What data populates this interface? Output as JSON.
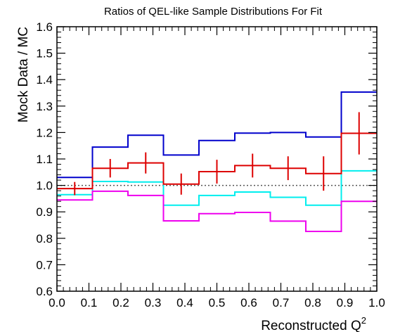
{
  "chart_data": {
    "type": "line",
    "title": "Ratios of QEL-like Sample Distributions For Fit",
    "xlabel": "Reconstructed Q",
    "xlabel_sup": "2",
    "ylabel": "Mock Data / MC",
    "xlim": [
      0.0,
      1.0
    ],
    "ylim": [
      0.6,
      1.6
    ],
    "x_ticks": [
      0.0,
      0.1,
      0.2,
      0.3,
      0.4,
      0.5,
      0.6,
      0.7,
      0.8,
      0.9,
      1.0
    ],
    "x_tick_labels": [
      "0.0",
      "0.1",
      "0.2",
      "0.3",
      "0.4",
      "0.5",
      "0.6",
      "0.7",
      "0.8",
      "0.9",
      "1.0"
    ],
    "y_ticks": [
      0.6,
      0.7,
      0.8,
      0.9,
      1.0,
      1.1,
      1.2,
      1.3,
      1.4,
      1.5,
      1.6
    ],
    "y_tick_labels": [
      "0.6",
      "0.7",
      "0.8",
      "0.9",
      "1.0",
      "1.1",
      "1.2",
      "1.3",
      "1.4",
      "1.5",
      "1.6"
    ],
    "bin_edges": [
      0.0,
      0.111,
      0.222,
      0.333,
      0.444,
      0.556,
      0.667,
      0.778,
      0.889,
      1.0
    ],
    "reference_line": {
      "y": 1.0,
      "style": "dotted",
      "color": "#555555"
    },
    "series": [
      {
        "color": "#0000cc",
        "style": "step",
        "values": [
          1.03,
          1.145,
          1.19,
          1.115,
          1.17,
          1.198,
          1.2,
          1.183,
          1.353
        ]
      },
      {
        "color": "#dd0000",
        "style": "step-with-errors",
        "values": [
          0.988,
          1.065,
          1.085,
          1.005,
          1.052,
          1.075,
          1.065,
          1.045,
          1.197
        ],
        "errors": [
          0.025,
          0.035,
          0.04,
          0.04,
          0.045,
          0.045,
          0.045,
          0.065,
          0.08
        ]
      },
      {
        "color": "#00eeee",
        "style": "step",
        "values": [
          0.965,
          1.015,
          1.013,
          0.925,
          0.962,
          0.975,
          0.955,
          0.925,
          1.055
        ]
      },
      {
        "color": "#ee00ee",
        "style": "step",
        "values": [
          0.945,
          0.978,
          0.962,
          0.866,
          0.893,
          0.898,
          0.865,
          0.826,
          0.94
        ]
      }
    ],
    "grid": false,
    "legend": false
  }
}
